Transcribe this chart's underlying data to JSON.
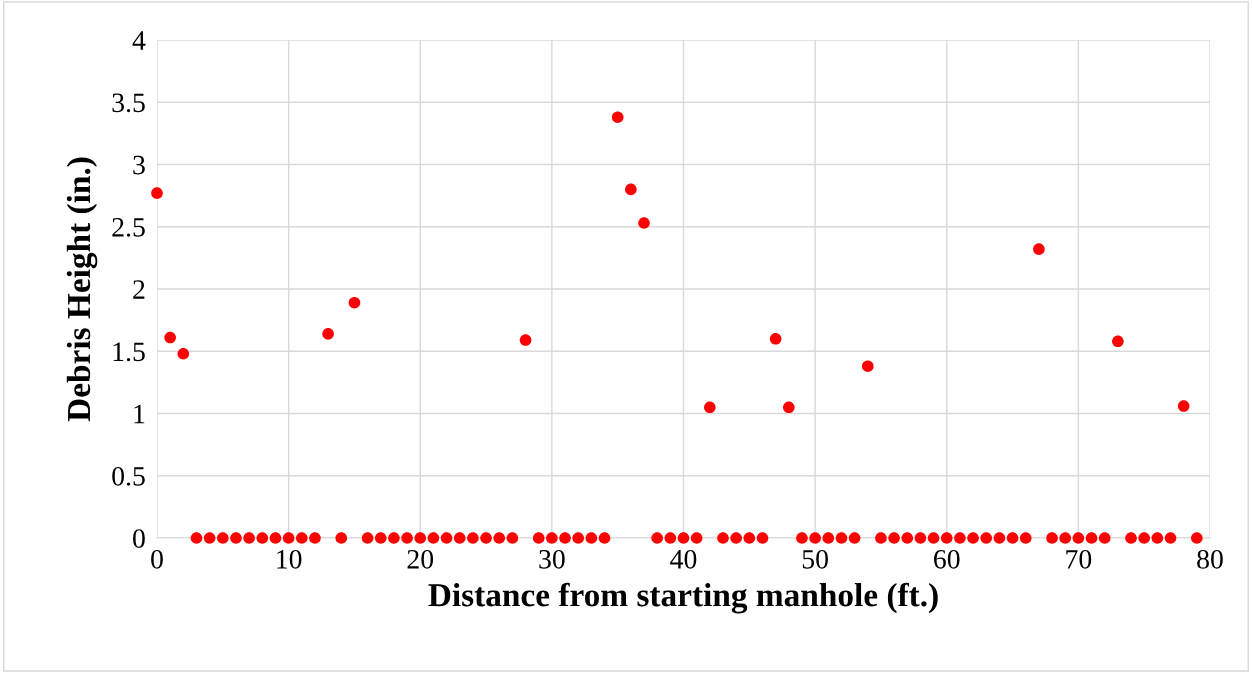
{
  "chart_data": {
    "type": "scatter",
    "xlabel": "Distance from starting manhole (ft.)",
    "ylabel": "Debris Height (in.)",
    "x": [
      0,
      1,
      2,
      3,
      4,
      5,
      6,
      7,
      8,
      9,
      10,
      11,
      12,
      13,
      14,
      15,
      16,
      17,
      18,
      19,
      20,
      21,
      22,
      23,
      24,
      25,
      26,
      27,
      28,
      29,
      30,
      31,
      32,
      33,
      34,
      35,
      36,
      37,
      38,
      39,
      40,
      41,
      42,
      43,
      44,
      45,
      46,
      47,
      48,
      49,
      50,
      51,
      52,
      53,
      54,
      55,
      56,
      57,
      58,
      59,
      60,
      61,
      62,
      63,
      64,
      65,
      66,
      67,
      68,
      69,
      70,
      71,
      72,
      73,
      74,
      75,
      76,
      77,
      78,
      79
    ],
    "values": [
      2.77,
      1.61,
      1.48,
      0,
      0,
      0,
      0,
      0,
      0,
      0,
      0,
      0,
      0,
      1.64,
      0,
      1.89,
      0,
      0,
      0,
      0,
      0,
      0,
      0,
      0,
      0,
      0,
      0,
      0,
      1.59,
      0,
      0,
      0,
      0,
      0,
      0,
      3.38,
      2.8,
      2.53,
      0,
      0,
      0,
      0,
      1.05,
      0,
      0,
      0,
      0,
      1.6,
      1.05,
      0,
      0,
      0,
      0,
      0,
      1.38,
      0,
      0,
      0,
      0,
      0,
      0,
      0,
      0,
      0,
      0,
      0,
      0,
      2.32,
      0,
      0,
      0,
      0,
      0,
      1.58,
      0,
      0,
      0,
      0,
      1.06,
      0
    ],
    "color": "#ff0000",
    "marker": "circle",
    "grid": true,
    "legend": false,
    "xlim": [
      0,
      80
    ],
    "xticks": [
      0,
      10,
      20,
      30,
      40,
      50,
      60,
      70,
      80
    ],
    "ylim": [
      0,
      4
    ],
    "yticks": [
      0,
      {
        "value": 0.5,
        "label": "0.5"
      },
      1,
      {
        "value": 1.5,
        "label": "1.5"
      },
      2,
      {
        "value": 2.5,
        "label": "2.5"
      },
      3,
      {
        "value": 3.5,
        "label": "3.5"
      },
      4
    ]
  }
}
